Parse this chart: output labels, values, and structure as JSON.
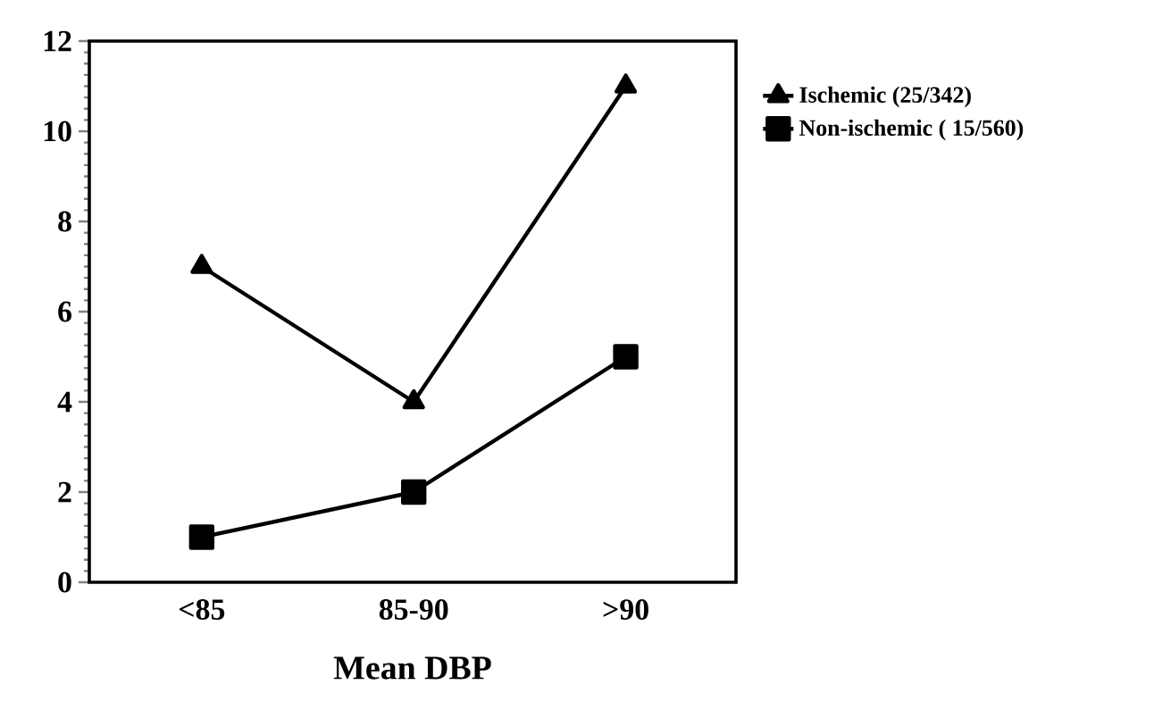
{
  "chart_data": {
    "type": "line",
    "xlabel": "Mean DBP",
    "categories": [
      "<85",
      "85-90",
      ">90"
    ],
    "series": [
      {
        "name": "Ischemic (25/342)",
        "color": "#000000",
        "values": [
          7,
          4,
          11
        ],
        "marker": "triangle"
      },
      {
        "name": "Non-ischemic ( 15/560)",
        "color": "#000000",
        "values": [
          1,
          2,
          5
        ],
        "marker": "square"
      }
    ],
    "ylim": [
      0,
      12
    ],
    "yticks": [
      0,
      2,
      4,
      6,
      8,
      10,
      12
    ],
    "grid": false,
    "legend": "right",
    "line_style": "solid"
  }
}
